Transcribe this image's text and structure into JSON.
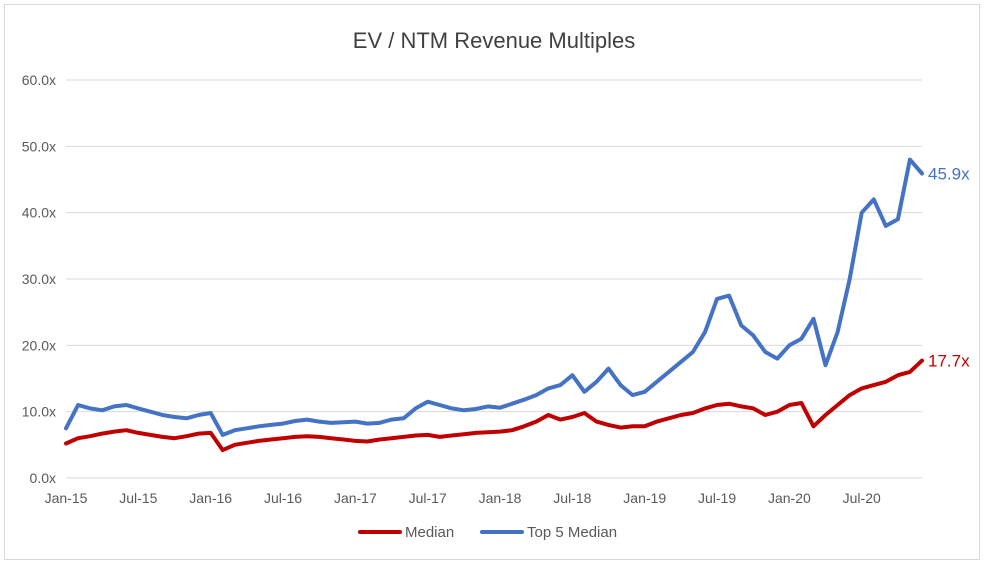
{
  "chart_data": {
    "type": "line",
    "title": "EV / NTM Revenue Multiples",
    "xlabel": "",
    "ylabel": "",
    "ylim": [
      0,
      60
    ],
    "y_ticks": [
      "0.0x",
      "10.0x",
      "20.0x",
      "30.0x",
      "40.0x",
      "50.0x",
      "60.0x"
    ],
    "x_ticks": [
      "Jan-15",
      "Jul-15",
      "Jan-16",
      "Jul-16",
      "Jan-17",
      "Jul-17",
      "Jan-18",
      "Jul-18",
      "Jan-19",
      "Jul-19",
      "Jan-20",
      "Jul-20"
    ],
    "grid": true,
    "legend_position": "bottom",
    "x": [
      "Jan-15",
      "Feb-15",
      "Mar-15",
      "Apr-15",
      "May-15",
      "Jun-15",
      "Jul-15",
      "Aug-15",
      "Sep-15",
      "Oct-15",
      "Nov-15",
      "Dec-15",
      "Jan-16",
      "Feb-16",
      "Mar-16",
      "Apr-16",
      "May-16",
      "Jun-16",
      "Jul-16",
      "Aug-16",
      "Sep-16",
      "Oct-16",
      "Nov-16",
      "Dec-16",
      "Jan-17",
      "Feb-17",
      "Mar-17",
      "Apr-17",
      "May-17",
      "Jun-17",
      "Jul-17",
      "Aug-17",
      "Sep-17",
      "Oct-17",
      "Nov-17",
      "Dec-17",
      "Jan-18",
      "Feb-18",
      "Mar-18",
      "Apr-18",
      "May-18",
      "Jun-18",
      "Jul-18",
      "Aug-18",
      "Sep-18",
      "Oct-18",
      "Nov-18",
      "Dec-18",
      "Jan-19",
      "Feb-19",
      "Mar-19",
      "Apr-19",
      "May-19",
      "Jun-19",
      "Jul-19",
      "Aug-19",
      "Sep-19",
      "Oct-19",
      "Nov-19",
      "Dec-19",
      "Jan-20",
      "Feb-20",
      "Mar-20",
      "Apr-20",
      "May-20",
      "Jun-20",
      "Jul-20",
      "Aug-20",
      "Sep-20",
      "Oct-20",
      "Nov-20",
      "Dec-20"
    ],
    "series": [
      {
        "name": "Median",
        "color": "#c00000",
        "end_label": "17.7x",
        "values": [
          5.2,
          6.0,
          6.3,
          6.7,
          7.0,
          7.2,
          6.8,
          6.5,
          6.2,
          6.0,
          6.3,
          6.7,
          6.8,
          4.2,
          5.0,
          5.3,
          5.6,
          5.8,
          6.0,
          6.2,
          6.3,
          6.2,
          6.0,
          5.8,
          5.6,
          5.5,
          5.8,
          6.0,
          6.2,
          6.4,
          6.5,
          6.2,
          6.4,
          6.6,
          6.8,
          6.9,
          7.0,
          7.2,
          7.8,
          8.5,
          9.5,
          8.8,
          9.2,
          9.8,
          8.5,
          8.0,
          7.6,
          7.8,
          7.8,
          8.5,
          9.0,
          9.5,
          9.8,
          10.5,
          11.0,
          11.2,
          10.8,
          10.5,
          9.5,
          10.0,
          11.0,
          11.3,
          7.8,
          9.5,
          11.0,
          12.5,
          13.5,
          14.0,
          14.5,
          15.5,
          16.0,
          17.7
        ]
      },
      {
        "name": "Top 5 Median",
        "color": "#4472c4",
        "end_label": "45.9x",
        "values": [
          7.5,
          11.0,
          10.5,
          10.2,
          10.8,
          11.0,
          10.5,
          10.0,
          9.5,
          9.2,
          9.0,
          9.5,
          9.8,
          6.5,
          7.2,
          7.5,
          7.8,
          8.0,
          8.2,
          8.6,
          8.8,
          8.5,
          8.3,
          8.4,
          8.5,
          8.2,
          8.3,
          8.8,
          9.0,
          10.5,
          11.5,
          11.0,
          10.5,
          10.2,
          10.4,
          10.8,
          10.6,
          11.2,
          11.8,
          12.5,
          13.5,
          14.0,
          15.5,
          13.0,
          14.5,
          16.5,
          14.0,
          12.5,
          13.0,
          14.5,
          16.0,
          17.5,
          19.0,
          22.0,
          27.0,
          27.5,
          23.0,
          21.5,
          19.0,
          18.0,
          20.0,
          21.0,
          24.0,
          17.0,
          22.0,
          30.0,
          40.0,
          42.0,
          38.0,
          39.0,
          48.0,
          45.9
        ]
      }
    ]
  }
}
